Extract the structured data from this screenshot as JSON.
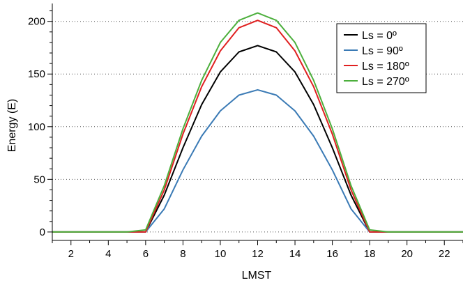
{
  "chart_data": {
    "type": "line",
    "xlabel": "LMST",
    "ylabel": "Energy (E)",
    "xlim": [
      1,
      23
    ],
    "ylim": [
      -8,
      217
    ],
    "x_ticks": [
      2,
      4,
      6,
      8,
      10,
      12,
      14,
      16,
      18,
      20,
      22
    ],
    "y_ticks": [
      0,
      50,
      100,
      150,
      200
    ],
    "grid": "horizontal dotted at y ticks",
    "legend_position": "top-right",
    "x": [
      1,
      2,
      3,
      4,
      5,
      6,
      7,
      8,
      9,
      10,
      11,
      12,
      13,
      14,
      15,
      16,
      17,
      18,
      19,
      20,
      21,
      22,
      23
    ],
    "series": [
      {
        "name": "Ls = 0º",
        "color": "#000000",
        "values": [
          0,
          0,
          0,
          0,
          0,
          0,
          35,
          80,
          121,
          152,
          171,
          177,
          171,
          152,
          121,
          80,
          35,
          0,
          0,
          0,
          0,
          0,
          0
        ]
      },
      {
        "name": "Ls = 90º",
        "color": "#3a7ab5",
        "values": [
          0,
          0,
          0,
          0,
          0,
          0,
          22,
          59,
          91,
          115,
          130,
          135,
          130,
          115,
          91,
          59,
          22,
          0,
          0,
          0,
          0,
          0,
          0
        ]
      },
      {
        "name": "Ls = 180º",
        "color": "#e02020",
        "values": [
          0,
          0,
          0,
          0,
          0,
          0,
          40,
          93,
          138,
          172,
          194,
          201,
          194,
          172,
          138,
          93,
          40,
          0,
          0,
          0,
          0,
          0,
          0
        ]
      },
      {
        "name": "Ls = 270º",
        "color": "#4caf3c",
        "values": [
          0,
          0,
          0,
          0,
          0,
          2,
          44,
          98,
          144,
          180,
          201,
          208,
          201,
          180,
          144,
          98,
          44,
          2,
          0,
          0,
          0,
          0,
          0
        ]
      }
    ]
  }
}
